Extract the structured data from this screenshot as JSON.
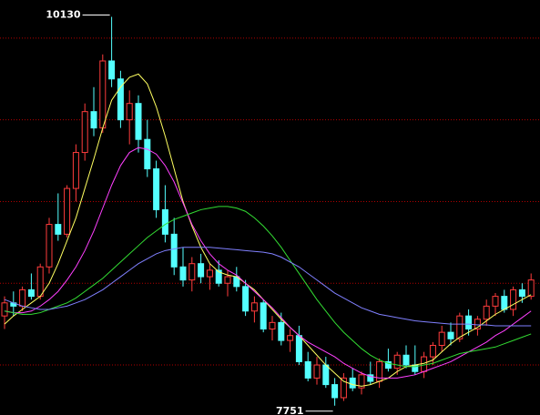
{
  "chart_data": {
    "type": "candlestick",
    "ylim": [
      7694,
      10233
    ],
    "yticks": [
      8000,
      8500,
      9000,
      9500,
      10000
    ],
    "grid": true,
    "up_color": "#ff3c3c",
    "down_color": "#54ffff",
    "open": [
      8300,
      8380,
      8360,
      8460,
      8420,
      8600,
      8860,
      8800,
      9080,
      9300,
      9550,
      9450,
      9860,
      9750,
      9500,
      9600,
      9380,
      9200,
      8950,
      8800,
      8600,
      8520,
      8620,
      8540,
      8580,
      8500,
      8540,
      8480,
      8330,
      8380,
      8220,
      8260,
      8150,
      8180,
      8020,
      7920,
      8000,
      7880,
      7800,
      7920,
      7860,
      7940,
      7900,
      8020,
      7980,
      8060,
      8000,
      7960,
      8050,
      8120,
      8200,
      8160,
      8300,
      8220,
      8280,
      8360,
      8420,
      8340,
      8460,
      8420
    ],
    "high": [
      8420,
      8450,
      8480,
      8560,
      8620,
      8900,
      9050,
      9100,
      9350,
      9600,
      9700,
      9900,
      10130,
      9800,
      9680,
      9650,
      9500,
      9250,
      9100,
      8900,
      8720,
      8660,
      8680,
      8620,
      8640,
      8580,
      8600,
      8520,
      8420,
      8400,
      8300,
      8320,
      8220,
      8240,
      8080,
      8050,
      8050,
      7920,
      7950,
      7980,
      7960,
      8020,
      8040,
      8100,
      8080,
      8120,
      8120,
      8080,
      8140,
      8240,
      8260,
      8320,
      8340,
      8300,
      8400,
      8440,
      8460,
      8480,
      8500,
      8560
    ],
    "low": [
      8220,
      8300,
      8330,
      8400,
      8400,
      8560,
      8760,
      8780,
      9000,
      9250,
      9400,
      9420,
      9700,
      9450,
      9350,
      9300,
      9150,
      8900,
      8750,
      8550,
      8480,
      8450,
      8500,
      8460,
      8480,
      8420,
      8450,
      8300,
      8260,
      8200,
      8150,
      8120,
      8080,
      8000,
      7900,
      7880,
      7860,
      7751,
      7780,
      7840,
      7820,
      7880,
      7860,
      7960,
      7940,
      7980,
      7940,
      7920,
      8000,
      8080,
      8120,
      8140,
      8180,
      8180,
      8240,
      8300,
      8320,
      8300,
      8380,
      8400
    ],
    "close": [
      8380,
      8360,
      8460,
      8420,
      8600,
      8860,
      8800,
      9080,
      9300,
      9550,
      9450,
      9860,
      9750,
      9500,
      9600,
      9380,
      9200,
      8950,
      8800,
      8600,
      8520,
      8620,
      8540,
      8580,
      8500,
      8540,
      8480,
      8330,
      8380,
      8220,
      8260,
      8150,
      8180,
      8020,
      7920,
      8000,
      7880,
      7800,
      7920,
      7860,
      7940,
      7900,
      8020,
      7980,
      8060,
      8000,
      7960,
      8050,
      8120,
      8200,
      8160,
      8300,
      8220,
      8280,
      8360,
      8420,
      8340,
      8460,
      8420,
      8520
    ],
    "series": [
      {
        "color": "#ffff60",
        "values": [
          8250,
          8300,
          8340,
          8380,
          8420,
          8500,
          8620,
          8760,
          8900,
          9080,
          9260,
          9450,
          9620,
          9700,
          9760,
          9780,
          9720,
          9580,
          9400,
          9200,
          9000,
          8850,
          8720,
          8620,
          8570,
          8550,
          8540,
          8500,
          8460,
          8400,
          8340,
          8280,
          8230,
          8180,
          8120,
          8060,
          8000,
          7950,
          7900,
          7880,
          7870,
          7880,
          7900,
          7920,
          7960,
          7990,
          8000,
          8010,
          8030,
          8080,
          8130,
          8170,
          8200,
          8230,
          8270,
          8310,
          8340,
          8370,
          8400,
          8430
        ]
      },
      {
        "color": "#ff40ff",
        "values": [
          8330,
          8320,
          8320,
          8330,
          8360,
          8400,
          8450,
          8520,
          8600,
          8700,
          8820,
          8960,
          9100,
          9220,
          9300,
          9330,
          9320,
          9290,
          9220,
          9120,
          8990,
          8860,
          8760,
          8680,
          8620,
          8580,
          8550,
          8500,
          8450,
          8400,
          8350,
          8290,
          8230,
          8180,
          8140,
          8110,
          8080,
          8050,
          8010,
          7980,
          7950,
          7930,
          7920,
          7920,
          7920,
          7930,
          7940,
          7960,
          7980,
          8000,
          8020,
          8050,
          8080,
          8110,
          8140,
          8180,
          8210,
          8250,
          8290,
          8330
        ]
      },
      {
        "color": "#33dd33",
        "values": [
          8330,
          8320,
          8310,
          8310,
          8320,
          8340,
          8360,
          8380,
          8410,
          8450,
          8490,
          8530,
          8580,
          8630,
          8680,
          8730,
          8780,
          8820,
          8860,
          8890,
          8910,
          8930,
          8950,
          8960,
          8970,
          8970,
          8960,
          8940,
          8900,
          8850,
          8790,
          8720,
          8640,
          8560,
          8480,
          8400,
          8330,
          8260,
          8200,
          8150,
          8100,
          8060,
          8030,
          8010,
          8000,
          7990,
          7990,
          8000,
          8010,
          8030,
          8050,
          8070,
          8080,
          8090,
          8100,
          8110,
          8130,
          8150,
          8170,
          8190
        ]
      },
      {
        "color": "#8080ff",
        "values": [
          8400,
          8380,
          8360,
          8350,
          8340,
          8340,
          8350,
          8360,
          8380,
          8400,
          8430,
          8460,
          8500,
          8540,
          8580,
          8620,
          8650,
          8680,
          8700,
          8710,
          8720,
          8720,
          8720,
          8720,
          8715,
          8710,
          8705,
          8700,
          8695,
          8690,
          8680,
          8660,
          8630,
          8600,
          8560,
          8520,
          8480,
          8440,
          8410,
          8380,
          8350,
          8330,
          8310,
          8300,
          8290,
          8280,
          8270,
          8265,
          8260,
          8255,
          8250,
          8250,
          8250,
          8245,
          8245,
          8240,
          8240,
          8240,
          8240,
          8240
        ]
      }
    ],
    "annotations": [
      {
        "index": 12,
        "of": "high"
      },
      {
        "index": 37,
        "of": "low"
      }
    ]
  }
}
